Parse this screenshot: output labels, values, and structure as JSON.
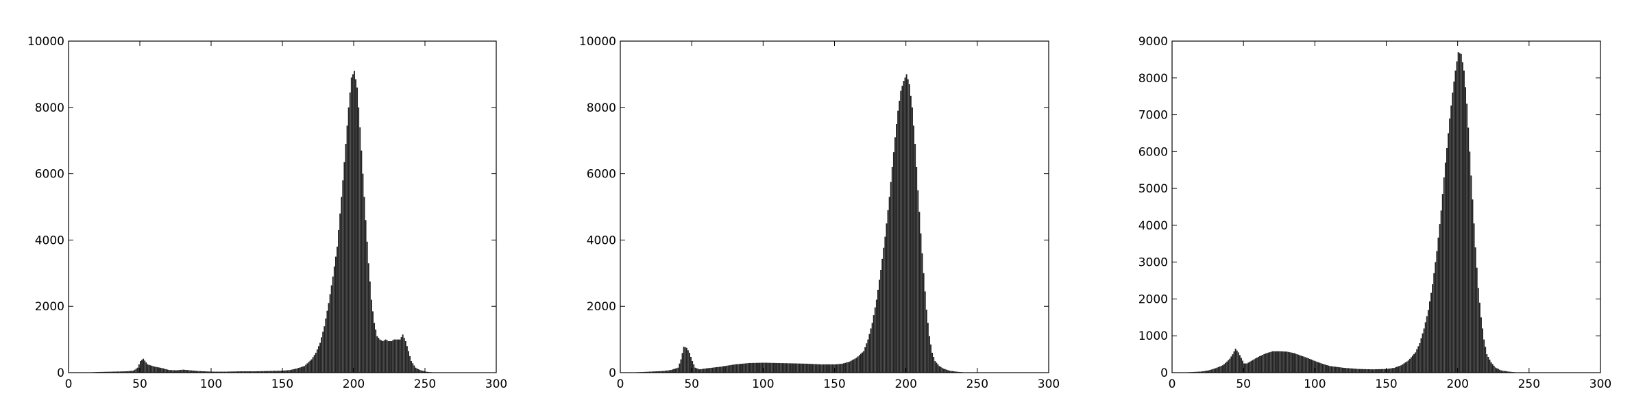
{
  "figure": {
    "bar_color": "#222222",
    "bar_edge_color": "#888888",
    "frame_color": "#000000",
    "background": "#ffffff"
  },
  "chart_data": [
    {
      "type": "bar",
      "title": "",
      "xlabel": "",
      "ylabel": "",
      "grid": false,
      "xlim": [
        0,
        300
      ],
      "ylim": [
        0,
        10000
      ],
      "xticks": [
        0,
        50,
        100,
        150,
        200,
        250,
        300
      ],
      "yticks": [
        0,
        2000,
        4000,
        6000,
        8000,
        10000
      ],
      "series": [
        {
          "x": [
            10,
            20,
            30,
            40,
            45,
            48,
            50,
            52,
            55,
            60,
            65,
            70,
            75,
            80,
            90,
            100,
            110,
            120,
            130,
            140,
            150,
            155,
            160,
            165,
            170,
            173,
            176,
            179,
            182,
            185,
            188,
            190,
            192,
            194,
            196,
            198,
            200,
            202,
            204,
            206,
            208,
            210,
            212,
            214,
            216,
            218,
            220,
            222,
            224,
            226,
            228,
            230,
            232,
            234,
            236,
            238,
            240,
            243,
            246,
            250,
            255,
            260,
            270,
            280
          ],
          "values": [
            0,
            20,
            30,
            40,
            60,
            150,
            350,
            420,
            250,
            180,
            140,
            80,
            70,
            90,
            50,
            30,
            30,
            40,
            40,
            50,
            60,
            80,
            130,
            200,
            400,
            600,
            900,
            1400,
            2100,
            2900,
            3800,
            4800,
            5800,
            6900,
            8000,
            8900,
            9100,
            8600,
            7400,
            6000,
            4600,
            3300,
            2200,
            1500,
            1100,
            1000,
            950,
            1000,
            950,
            950,
            1000,
            1000,
            1000,
            1150,
            950,
            650,
            350,
            150,
            80,
            30,
            10,
            0,
            0,
            0
          ]
        }
      ]
    },
    {
      "type": "bar",
      "title": "",
      "xlabel": "",
      "ylabel": "",
      "grid": false,
      "xlim": [
        0,
        300
      ],
      "ylim": [
        0,
        10000
      ],
      "xticks": [
        0,
        50,
        100,
        150,
        200,
        250,
        300
      ],
      "yticks": [
        0,
        2000,
        4000,
        6000,
        8000,
        10000
      ],
      "series": [
        {
          "x": [
            5,
            10,
            20,
            30,
            35,
            40,
            42,
            44,
            46,
            48,
            50,
            52,
            55,
            60,
            70,
            80,
            90,
            100,
            110,
            120,
            130,
            140,
            150,
            155,
            160,
            165,
            170,
            173,
            176,
            179,
            182,
            185,
            188,
            190,
            192,
            194,
            196,
            198,
            200,
            202,
            204,
            206,
            208,
            210,
            212,
            214,
            216,
            218,
            220,
            223,
            226,
            230,
            235,
            240,
            250,
            260,
            280
          ],
          "values": [
            0,
            10,
            30,
            50,
            80,
            150,
            400,
            780,
            750,
            600,
            350,
            150,
            100,
            130,
            180,
            250,
            290,
            300,
            290,
            280,
            270,
            250,
            250,
            270,
            330,
            450,
            650,
            1000,
            1500,
            2200,
            3100,
            4100,
            5300,
            6200,
            7100,
            7900,
            8500,
            8800,
            9000,
            8700,
            8000,
            6900,
            5500,
            4200,
            3000,
            1900,
            1100,
            600,
            350,
            200,
            120,
            60,
            30,
            10,
            0,
            0,
            0
          ]
        }
      ]
    },
    {
      "type": "bar",
      "title": "",
      "xlabel": "",
      "ylabel": "",
      "grid": false,
      "xlim": [
        0,
        300
      ],
      "ylim": [
        0,
        9000
      ],
      "xticks": [
        0,
        50,
        100,
        150,
        200,
        250,
        300
      ],
      "yticks": [
        0,
        1000,
        2000,
        3000,
        4000,
        5000,
        6000,
        7000,
        8000,
        9000
      ],
      "series": [
        {
          "x": [
            5,
            10,
            20,
            25,
            30,
            35,
            38,
            40,
            42,
            44,
            46,
            48,
            50,
            52,
            55,
            60,
            65,
            70,
            75,
            80,
            85,
            90,
            95,
            100,
            105,
            110,
            120,
            130,
            140,
            150,
            155,
            160,
            165,
            170,
            173,
            176,
            179,
            182,
            185,
            188,
            190,
            192,
            194,
            196,
            198,
            200,
            202,
            204,
            206,
            208,
            210,
            212,
            214,
            216,
            218,
            220,
            223,
            226,
            230,
            235,
            240,
            250,
            260,
            280
          ],
          "values": [
            0,
            10,
            30,
            60,
            120,
            200,
            300,
            380,
            500,
            650,
            550,
            400,
            250,
            250,
            320,
            430,
            520,
            580,
            580,
            570,
            530,
            460,
            390,
            310,
            240,
            180,
            130,
            100,
            90,
            100,
            130,
            200,
            330,
            550,
            800,
            1200,
            1700,
            2400,
            3300,
            4400,
            5300,
            6100,
            6900,
            7600,
            8200,
            8700,
            8650,
            8200,
            7300,
            6000,
            4700,
            3400,
            2300,
            1500,
            900,
            500,
            280,
            140,
            60,
            30,
            10,
            0,
            0,
            0
          ]
        }
      ]
    }
  ]
}
